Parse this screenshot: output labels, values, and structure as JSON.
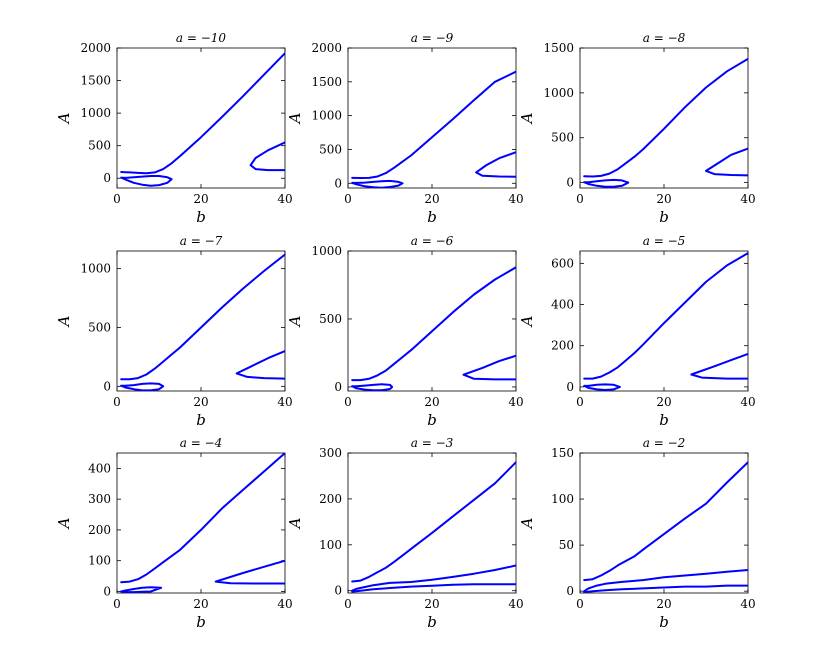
{
  "chart_data": [
    {
      "type": "line",
      "title": "a = −10",
      "xlabel": "b",
      "ylabel": "A",
      "xlim": [
        0,
        40
      ],
      "ylim": [
        -150,
        2000
      ],
      "xticks": [
        0,
        20,
        40
      ],
      "yticks": [
        0,
        500,
        1000,
        1500,
        2000
      ],
      "color": "#0000ff",
      "series": [
        {
          "x": [
            1,
            3,
            5,
            7,
            9,
            11,
            13,
            15,
            20,
            25,
            30,
            35,
            40
          ],
          "y": [
            95,
            90,
            82,
            75,
            90,
            140,
            230,
            340,
            630,
            940,
            1260,
            1590,
            1920
          ]
        },
        {
          "x": [
            1,
            2,
            4,
            6,
            8,
            10,
            12,
            13,
            12,
            10,
            8,
            6,
            4,
            2,
            1
          ],
          "y": [
            10,
            -20,
            -70,
            -100,
            -115,
            -105,
            -70,
            -15,
            15,
            35,
            35,
            25,
            15,
            5,
            10
          ]
        },
        {
          "x": [
            40,
            36,
            33,
            31.8,
            33,
            36,
            40
          ],
          "y": [
            550,
            430,
            310,
            200,
            140,
            125,
            125
          ]
        }
      ]
    },
    {
      "type": "line",
      "title": "a = −9",
      "xlabel": "b",
      "ylabel": "A",
      "xlim": [
        0,
        40
      ],
      "ylim": [
        -70,
        2000
      ],
      "xticks": [
        0,
        20,
        40
      ],
      "yticks": [
        0,
        500,
        1000,
        1500,
        2000
      ],
      "color": "#0000ff",
      "series": [
        {
          "x": [
            1,
            3,
            5,
            7,
            9,
            11,
            13,
            15,
            20,
            25,
            30,
            35,
            40
          ],
          "y": [
            80,
            78,
            80,
            100,
            150,
            230,
            320,
            410,
            680,
            950,
            1230,
            1500,
            1650
          ]
        },
        {
          "x": [
            1,
            2,
            4,
            6,
            8,
            10,
            12,
            13,
            12,
            10,
            8,
            6,
            4,
            2,
            1
          ],
          "y": [
            5,
            -15,
            -45,
            -60,
            -65,
            -55,
            -35,
            0,
            20,
            35,
            30,
            20,
            10,
            5,
            5
          ]
        },
        {
          "x": [
            40,
            36,
            33,
            30.5,
            32,
            36,
            40
          ],
          "y": [
            460,
            370,
            270,
            160,
            110,
            100,
            95
          ]
        }
      ]
    },
    {
      "type": "line",
      "title": "a = −8",
      "xlabel": "b",
      "ylabel": "A",
      "xlim": [
        0,
        40
      ],
      "ylim": [
        -60,
        1500
      ],
      "xticks": [
        0,
        20,
        40
      ],
      "yticks": [
        0,
        500,
        1000,
        1500
      ],
      "color": "#0000ff",
      "series": [
        {
          "x": [
            1,
            3,
            5,
            7,
            9,
            11,
            13,
            15,
            20,
            25,
            30,
            35,
            40
          ],
          "y": [
            70,
            68,
            75,
            100,
            150,
            220,
            290,
            370,
            600,
            840,
            1060,
            1240,
            1380
          ]
        },
        {
          "x": [
            1,
            2,
            4,
            6,
            8,
            10,
            11.5,
            10,
            8,
            6,
            4,
            2,
            1
          ],
          "y": [
            5,
            -15,
            -35,
            -45,
            -45,
            -35,
            0,
            25,
            30,
            25,
            15,
            5,
            5
          ]
        },
        {
          "x": [
            40,
            36,
            33,
            30,
            32,
            36,
            40
          ],
          "y": [
            380,
            310,
            220,
            130,
            95,
            85,
            80
          ]
        }
      ]
    },
    {
      "type": "line",
      "title": "a = −7",
      "xlabel": "b",
      "ylabel": "A",
      "xlim": [
        0,
        40
      ],
      "ylim": [
        -40,
        1150
      ],
      "xticks": [
        0,
        20,
        40
      ],
      "yticks": [
        0,
        500,
        1000
      ],
      "color": "#0000ff",
      "series": [
        {
          "x": [
            1,
            3,
            5,
            7,
            9,
            11,
            13,
            15,
            20,
            25,
            30,
            35,
            40
          ],
          "y": [
            60,
            60,
            70,
            100,
            150,
            210,
            270,
            330,
            500,
            670,
            830,
            980,
            1120
          ]
        },
        {
          "x": [
            1,
            2,
            4,
            6,
            8,
            10,
            11,
            10,
            8,
            6,
            4,
            2,
            1
          ],
          "y": [
            5,
            -10,
            -25,
            -35,
            -35,
            -25,
            0,
            20,
            25,
            20,
            10,
            5,
            5
          ]
        },
        {
          "x": [
            40,
            36,
            32,
            28.5,
            31,
            35,
            40
          ],
          "y": [
            300,
            240,
            170,
            110,
            80,
            70,
            65
          ]
        }
      ]
    },
    {
      "type": "line",
      "title": "a = −6",
      "xlabel": "b",
      "ylabel": "A",
      "xlim": [
        0,
        40
      ],
      "ylim": [
        -30,
        1000
      ],
      "xticks": [
        0,
        20,
        40
      ],
      "yticks": [
        0,
        500,
        1000
      ],
      "color": "#0000ff",
      "series": [
        {
          "x": [
            1,
            3,
            5,
            7,
            9,
            11,
            13,
            15,
            20,
            25,
            30,
            35,
            40
          ],
          "y": [
            50,
            50,
            60,
            85,
            120,
            170,
            220,
            270,
            410,
            550,
            680,
            790,
            880
          ]
        },
        {
          "x": [
            1,
            2,
            4,
            6,
            8,
            10,
            10.5,
            10,
            8,
            6,
            4,
            2,
            1
          ],
          "y": [
            5,
            -10,
            -20,
            -25,
            -25,
            -15,
            0,
            15,
            20,
            15,
            10,
            5,
            5
          ]
        },
        {
          "x": [
            40,
            36,
            32,
            27.5,
            30,
            35,
            40
          ],
          "y": [
            230,
            190,
            140,
            90,
            60,
            55,
            55
          ]
        }
      ]
    },
    {
      "type": "line",
      "title": "a = −5",
      "xlabel": "b",
      "ylabel": "A",
      "xlim": [
        0,
        40
      ],
      "ylim": [
        -20,
        660
      ],
      "xticks": [
        0,
        20,
        40
      ],
      "yticks": [
        0,
        200,
        400,
        600
      ],
      "color": "#0000ff",
      "series": [
        {
          "x": [
            1,
            3,
            5,
            7,
            9,
            11,
            13,
            15,
            20,
            25,
            30,
            35,
            40
          ],
          "y": [
            40,
            40,
            50,
            70,
            95,
            130,
            165,
            205,
            310,
            410,
            510,
            590,
            650
          ]
        },
        {
          "x": [
            1,
            2,
            4,
            6,
            8,
            9.5,
            8,
            6,
            4,
            2,
            1
          ],
          "y": [
            5,
            -5,
            -12,
            -15,
            -12,
            0,
            10,
            12,
            10,
            5,
            5
          ]
        },
        {
          "x": [
            40,
            36,
            32,
            26.5,
            29,
            35,
            40
          ],
          "y": [
            160,
            130,
            100,
            60,
            45,
            40,
            40
          ]
        }
      ]
    },
    {
      "type": "line",
      "title": "a = −4",
      "xlabel": "b",
      "ylabel": "A",
      "xlim": [
        0,
        40
      ],
      "ylim": [
        -5,
        450
      ],
      "xticks": [
        0,
        20,
        40
      ],
      "yticks": [
        0,
        100,
        200,
        300,
        400
      ],
      "color": "#0000ff",
      "series": [
        {
          "x": [
            1,
            3,
            5,
            7,
            9,
            11,
            13,
            15,
            20,
            25,
            30,
            35,
            40
          ],
          "y": [
            30,
            32,
            40,
            55,
            75,
            95,
            115,
            135,
            200,
            270,
            330,
            390,
            450
          ]
        },
        {
          "x": [
            1,
            2,
            4,
            6,
            8,
            10.5,
            8,
            6,
            4,
            2,
            1
          ],
          "y": [
            0,
            -2,
            -2,
            -1,
            0,
            12,
            14,
            12,
            8,
            3,
            0
          ]
        },
        {
          "x": [
            40,
            35,
            30,
            23.5,
            27,
            33,
            40
          ],
          "y": [
            100,
            80,
            60,
            32,
            27,
            26,
            26
          ]
        }
      ]
    },
    {
      "type": "line",
      "title": "a = −3",
      "xlabel": "b",
      "ylabel": "A",
      "xlim": [
        0,
        40
      ],
      "ylim": [
        -5,
        300
      ],
      "xticks": [
        0,
        20,
        40
      ],
      "yticks": [
        0,
        100,
        200,
        300
      ],
      "color": "#0000ff",
      "series": [
        {
          "x": [
            1,
            3,
            5,
            7,
            9,
            11,
            13,
            15,
            20,
            25,
            30,
            35,
            40
          ],
          "y": [
            20,
            22,
            30,
            40,
            50,
            63,
            77,
            91,
            126,
            162,
            198,
            234,
            280
          ]
        },
        {
          "x": [
            1,
            2,
            4,
            6,
            10,
            15,
            20,
            25,
            30,
            35,
            40
          ],
          "y": [
            0,
            4,
            8,
            12,
            17,
            19,
            24,
            30,
            37,
            45,
            55
          ]
        },
        {
          "x": [
            1,
            3,
            6,
            10,
            15,
            20,
            25,
            30,
            35,
            40
          ],
          "y": [
            -2,
            0,
            3,
            6,
            9,
            11,
            13,
            14,
            14,
            14
          ]
        }
      ]
    },
    {
      "type": "line",
      "title": "a = −2",
      "xlabel": "b",
      "ylabel": "A",
      "xlim": [
        0,
        40
      ],
      "ylim": [
        -2,
        150
      ],
      "xticks": [
        0,
        20,
        40
      ],
      "yticks": [
        0,
        50,
        100,
        150
      ],
      "color": "#0000ff",
      "series": [
        {
          "x": [
            1,
            3,
            5,
            7,
            9,
            11,
            13,
            15,
            20,
            25,
            30,
            35,
            40
          ],
          "y": [
            12,
            13,
            17,
            22,
            28,
            33,
            38,
            45,
            62,
            79,
            95,
            118,
            140
          ]
        },
        {
          "x": [
            1,
            2,
            4,
            6,
            10,
            15,
            20,
            25,
            30,
            35,
            40
          ],
          "y": [
            0,
            3,
            6,
            8,
            10,
            12,
            15,
            17,
            19,
            21,
            23
          ]
        },
        {
          "x": [
            1,
            3,
            6,
            10,
            15,
            20,
            25,
            30,
            35,
            40
          ],
          "y": [
            -1,
            0,
            1,
            2,
            3,
            4,
            5,
            5,
            6,
            6
          ]
        }
      ]
    }
  ]
}
